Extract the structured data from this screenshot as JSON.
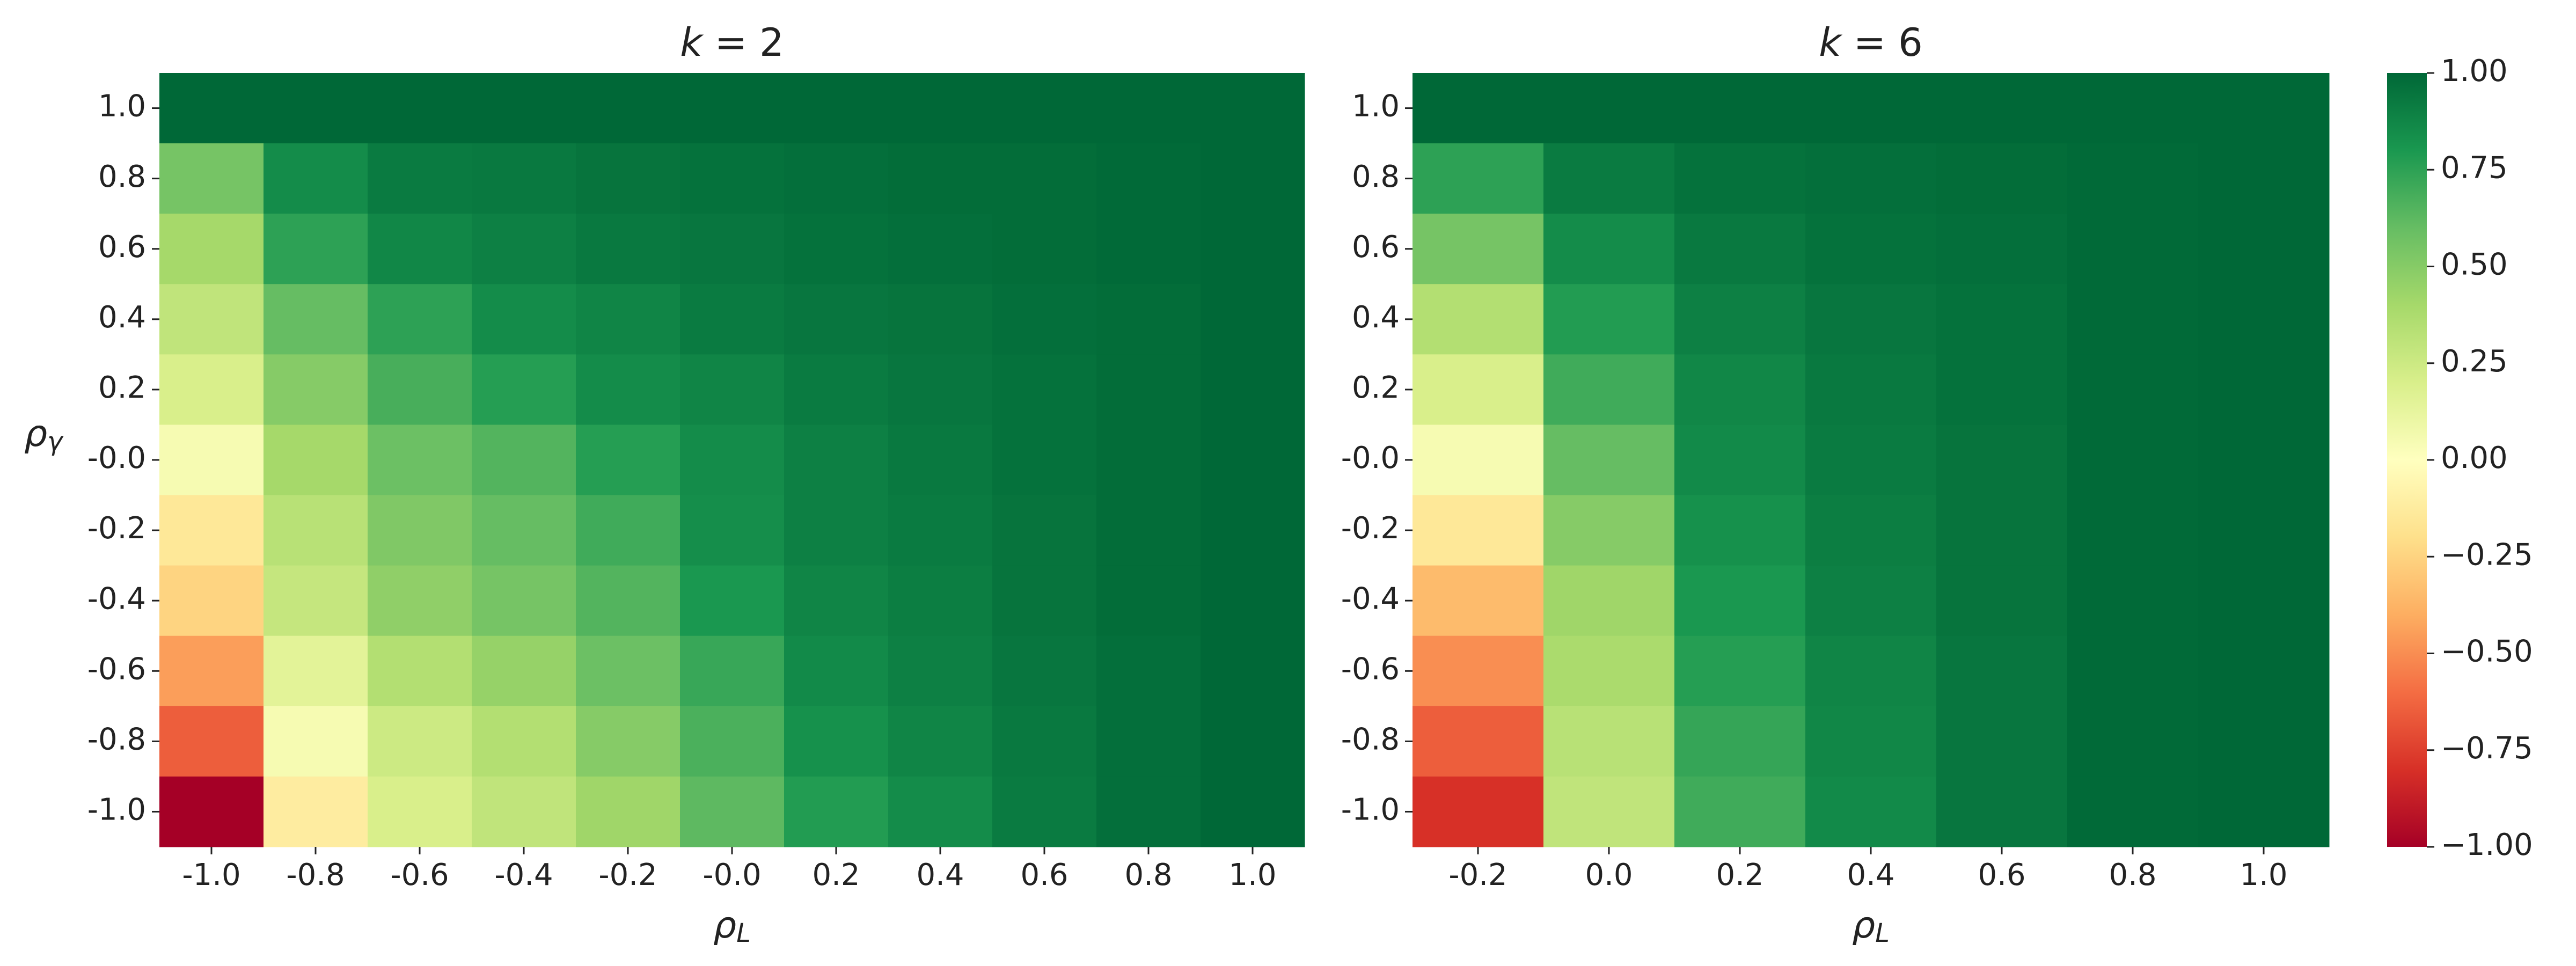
{
  "chart_data": [
    {
      "type": "heatmap",
      "title": {
        "symbol": "k",
        "rest": " = 2"
      },
      "x_label": {
        "symbol": "ρ",
        "subscript": "L"
      },
      "y_label": {
        "symbol": "ρ",
        "subscript": "γ"
      },
      "x_categories": [
        "-1.0",
        "-0.8",
        "-0.6",
        "-0.4",
        "-0.2",
        "-0.0",
        "0.2",
        "0.4",
        "0.6",
        "0.8",
        "1.0"
      ],
      "y_categories": [
        "1.0",
        "0.8",
        "0.6",
        "0.4",
        "0.2",
        "-0.0",
        "-0.2",
        "-0.4",
        "-0.6",
        "-0.8",
        "-1.0"
      ],
      "values": [
        [
          1,
          1,
          1,
          1,
          1,
          1,
          1,
          1,
          1,
          1,
          1
        ],
        [
          0.55,
          0.85,
          0.92,
          0.93,
          0.95,
          0.96,
          0.97,
          0.98,
          0.98,
          0.99,
          1
        ],
        [
          0.4,
          0.75,
          0.87,
          0.9,
          0.93,
          0.94,
          0.96,
          0.97,
          0.98,
          0.99,
          1
        ],
        [
          0.3,
          0.6,
          0.75,
          0.85,
          0.88,
          0.92,
          0.94,
          0.95,
          0.97,
          0.98,
          1
        ],
        [
          0.2,
          0.5,
          0.68,
          0.77,
          0.85,
          0.88,
          0.92,
          0.94,
          0.96,
          0.98,
          1
        ],
        [
          0.05,
          0.4,
          0.58,
          0.65,
          0.77,
          0.85,
          0.9,
          0.93,
          0.96,
          0.98,
          1
        ],
        [
          -0.15,
          0.33,
          0.52,
          0.6,
          0.7,
          0.84,
          0.9,
          0.92,
          0.95,
          0.98,
          1
        ],
        [
          -0.25,
          0.28,
          0.47,
          0.55,
          0.65,
          0.8,
          0.88,
          0.91,
          0.95,
          0.98,
          1
        ],
        [
          -0.45,
          0.15,
          0.35,
          0.45,
          0.58,
          0.72,
          0.86,
          0.9,
          0.94,
          0.97,
          1
        ],
        [
          -0.65,
          0.05,
          0.25,
          0.35,
          0.5,
          0.67,
          0.83,
          0.88,
          0.93,
          0.97,
          1
        ],
        [
          -1,
          -0.12,
          0.2,
          0.3,
          0.42,
          0.62,
          0.78,
          0.85,
          0.92,
          0.97,
          1
        ]
      ]
    },
    {
      "type": "heatmap",
      "title": {
        "symbol": "k",
        "rest": " = 6"
      },
      "x_label": {
        "symbol": "ρ",
        "subscript": "L"
      },
      "x_categories": [
        "-0.2",
        "0.0",
        "0.2",
        "0.4",
        "0.6",
        "0.8",
        "1.0"
      ],
      "y_categories": [
        "1.0",
        "0.8",
        "0.6",
        "0.4",
        "0.2",
        "-0.0",
        "-0.2",
        "-0.4",
        "-0.6",
        "-0.8",
        "-1.0"
      ],
      "values": [
        [
          1,
          1,
          1,
          1,
          1,
          1,
          1
        ],
        [
          0.75,
          0.92,
          0.96,
          0.97,
          0.98,
          0.99,
          1
        ],
        [
          0.55,
          0.85,
          0.93,
          0.96,
          0.97,
          0.99,
          1
        ],
        [
          0.35,
          0.78,
          0.9,
          0.94,
          0.96,
          0.99,
          1
        ],
        [
          0.2,
          0.7,
          0.87,
          0.93,
          0.96,
          0.99,
          1
        ],
        [
          0.05,
          0.6,
          0.86,
          0.92,
          0.95,
          0.99,
          1
        ],
        [
          -0.15,
          0.5,
          0.83,
          0.91,
          0.95,
          0.99,
          1
        ],
        [
          -0.35,
          0.42,
          0.8,
          0.9,
          0.95,
          0.99,
          1
        ],
        [
          -0.5,
          0.38,
          0.77,
          0.88,
          0.94,
          0.99,
          1
        ],
        [
          -0.65,
          0.33,
          0.73,
          0.87,
          0.94,
          0.99,
          1
        ],
        [
          -0.8,
          0.3,
          0.7,
          0.86,
          0.94,
          0.99,
          1
        ]
      ]
    }
  ],
  "colorbar": {
    "colormap": "RdYlGn",
    "clim": [
      -1,
      1
    ],
    "ticks": [
      {
        "value": 1,
        "label": "1.00"
      },
      {
        "value": 0.75,
        "label": "0.75"
      },
      {
        "value": 0.5,
        "label": "0.50"
      },
      {
        "value": 0.25,
        "label": "0.25"
      },
      {
        "value": 0,
        "label": "0.00"
      },
      {
        "value": -0.25,
        "label": "−0.25"
      },
      {
        "value": -0.5,
        "label": "−0.50"
      },
      {
        "value": -0.75,
        "label": "−0.75"
      },
      {
        "value": -1,
        "label": "−1.00"
      }
    ]
  }
}
